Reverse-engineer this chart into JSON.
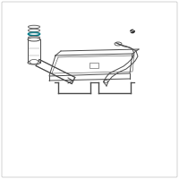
{
  "bg_color": "#ffffff",
  "line_color": "#4a4a4a",
  "teal_color": "#007b8a",
  "dark_color": "#2a2a2a",
  "fig_size": [
    2.0,
    2.0
  ],
  "dpi": 100
}
